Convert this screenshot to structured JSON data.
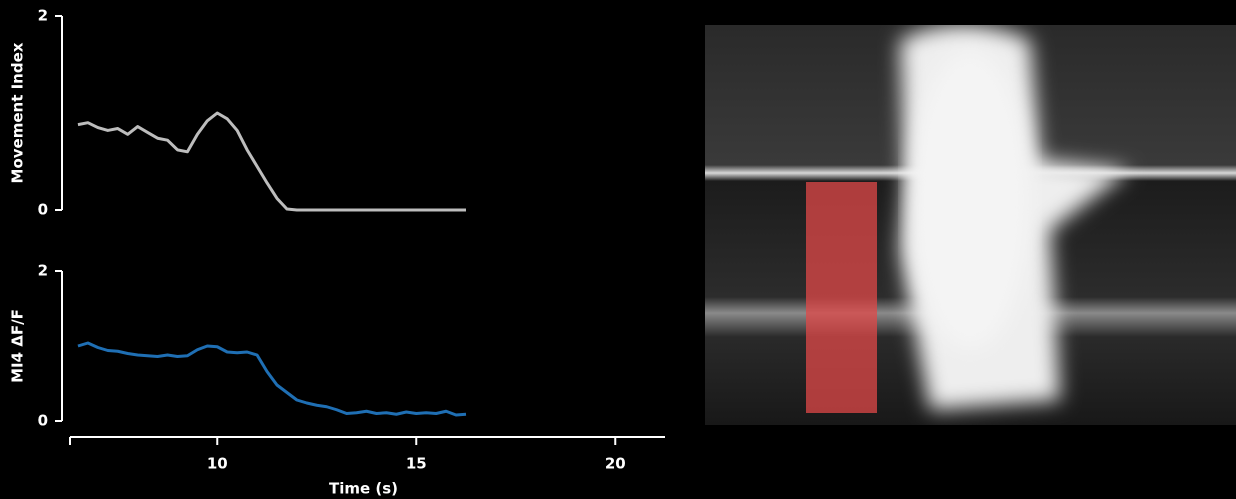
{
  "chart_data": [
    {
      "type": "line",
      "ylabel": "Movement Index",
      "x": [
        6.5,
        6.75,
        7.0,
        7.25,
        7.5,
        7.75,
        8.0,
        8.25,
        8.5,
        8.75,
        9.0,
        9.25,
        9.5,
        9.75,
        10.0,
        10.25,
        10.5,
        10.75,
        11.0,
        11.25,
        11.5,
        11.75,
        12.0,
        12.25,
        12.5,
        12.75,
        13.0,
        13.25,
        13.5,
        13.75,
        14.0,
        14.25,
        14.5,
        14.75,
        15.0,
        15.25,
        15.5,
        15.75,
        16.0,
        16.25
      ],
      "series": [
        {
          "color": "#bdbdbd",
          "values": [
            0.88,
            0.9,
            0.85,
            0.82,
            0.84,
            0.78,
            0.86,
            0.8,
            0.74,
            0.72,
            0.62,
            0.6,
            0.78,
            0.92,
            1.0,
            0.94,
            0.82,
            0.62,
            0.45,
            0.28,
            0.12,
            0.01,
            0,
            0,
            0,
            0,
            0,
            0,
            0,
            0,
            0,
            0,
            0,
            0,
            0,
            0,
            0,
            0,
            0,
            0
          ]
        }
      ],
      "xlim": [
        6.3,
        21.25
      ],
      "ylim": [
        0,
        2
      ],
      "yticks": [
        0,
        2
      ]
    },
    {
      "type": "line",
      "ylabel": "MI4 ΔF/F",
      "xlabel": "Time (s)",
      "x": [
        6.5,
        6.75,
        7.0,
        7.25,
        7.5,
        7.75,
        8.0,
        8.25,
        8.5,
        8.75,
        9.0,
        9.25,
        9.5,
        9.75,
        10.0,
        10.25,
        10.5,
        10.75,
        11.0,
        11.25,
        11.5,
        11.75,
        12.0,
        12.25,
        12.5,
        12.75,
        13.0,
        13.25,
        13.5,
        13.75,
        14.0,
        14.25,
        14.5,
        14.75,
        15.0,
        15.25,
        15.5,
        15.75,
        16.0,
        16.25
      ],
      "series": [
        {
          "color": "#1f6fb4",
          "values": [
            1.0,
            1.04,
            0.98,
            0.94,
            0.93,
            0.9,
            0.88,
            0.87,
            0.86,
            0.88,
            0.86,
            0.87,
            0.95,
            1.0,
            0.99,
            0.92,
            0.91,
            0.92,
            0.88,
            0.66,
            0.48,
            0.38,
            0.28,
            0.24,
            0.21,
            0.19,
            0.15,
            0.1,
            0.11,
            0.13,
            0.1,
            0.11,
            0.09,
            0.12,
            0.1,
            0.11,
            0.1,
            0.13,
            0.08,
            0.09
          ]
        }
      ],
      "xlim": [
        6.3,
        21.25
      ],
      "xticks": [
        10,
        15,
        20
      ],
      "ylim": [
        0,
        2
      ],
      "yticks": [
        0,
        2
      ]
    }
  ]
}
